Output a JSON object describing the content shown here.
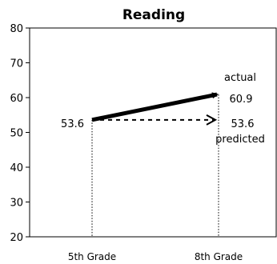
{
  "chart_data": {
    "type": "line",
    "title": "Reading",
    "xlabel": "",
    "ylabel": "",
    "categories": [
      "5th Grade",
      "8th Grade"
    ],
    "ylim": [
      20,
      80
    ],
    "yticks": [
      20,
      30,
      40,
      50,
      60,
      70,
      80
    ],
    "grid": false,
    "series": [
      {
        "name": "actual",
        "values": [
          53.6,
          60.9
        ],
        "style": "solid-thick-arrow",
        "color": "#000000"
      },
      {
        "name": "predicted",
        "values": [
          53.6,
          53.6
        ],
        "style": "dashed-arrow",
        "color": "#000000"
      }
    ],
    "annotations": {
      "start_value": "53.6",
      "actual_value": "60.9",
      "predicted_value": "53.6",
      "actual_label": "actual",
      "predicted_label": "predicted"
    }
  }
}
